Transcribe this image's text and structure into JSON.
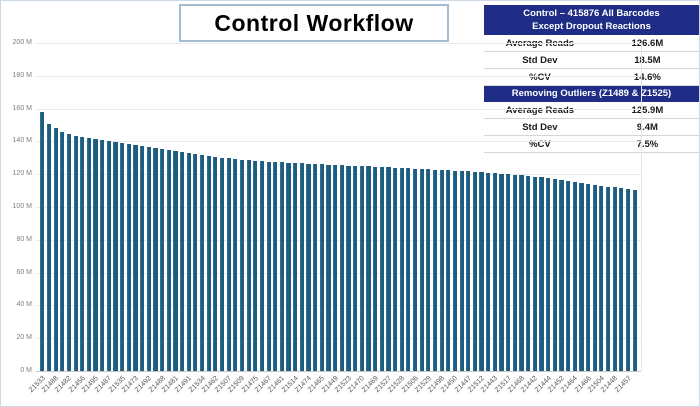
{
  "title": "Control Workflow",
  "stats_panel": {
    "sections": [
      {
        "header_line1": "Control  – 415876 All Barcodes",
        "header_line2": "Except Dropout Reactions",
        "rows": [
          {
            "label": "Average Reads",
            "value": "126.6M"
          },
          {
            "label": "Std Dev",
            "value": "18.5M"
          },
          {
            "label": "%CV",
            "value": "14.6%"
          }
        ]
      },
      {
        "header_line1": "Removing Outliers (Z1489 & Z1525)",
        "rows": [
          {
            "label": "Average Reads",
            "value": "125.9M"
          },
          {
            "label": "Std Dev",
            "value": "9.4M"
          },
          {
            "label": "%CV",
            "value": "7.5%"
          }
        ]
      }
    ]
  },
  "chart_data": {
    "type": "bar",
    "title": "Control Workflow",
    "xlabel": "",
    "ylabel": "",
    "ylim": [
      0,
      200
    ],
    "ytick_step": 20,
    "ytick_labels": [
      "0 M",
      "20 M",
      "40 M",
      "60 M",
      "80 M",
      "100 M",
      "120 M",
      "140 M",
      "160 M",
      "180 M",
      "200 M"
    ],
    "grid": true,
    "legend": "none",
    "bar_color": "#1e5c80",
    "units": "M",
    "label_every_n_bars": 2,
    "categories": [
      "Z1533",
      "Z1488",
      "Z1482",
      "Z1456",
      "Z1495",
      "Z1487",
      "Z1535",
      "Z1473",
      "Z1492",
      "Z1488",
      "Z1481",
      "Z1491",
      "Z1534",
      "Z1462",
      "Z1507",
      "Z1509",
      "Z1475",
      "Z1467",
      "Z1461",
      "Z1514",
      "Z1474",
      "Z1465",
      "Z1449",
      "Z1523",
      "Z1470",
      "Z1469",
      "Z1527",
      "Z1528",
      "Z1506",
      "Z1529",
      "Z1498",
      "Z1450",
      "Z1447",
      "Z1512",
      "Z1443",
      "Z1517",
      "Z1468",
      "Z1442",
      "Z1444",
      "Z1452",
      "Z1464",
      "Z1466",
      "Z1504",
      "Z1448",
      "Z1457"
    ],
    "values": [
      158.0,
      150.5,
      148.0,
      146.0,
      144.5,
      143.5,
      142.8,
      142.0,
      141.4,
      140.8,
      140.2,
      139.6,
      139.0,
      138.4,
      137.8,
      137.2,
      136.6,
      136.0,
      135.4,
      134.8,
      134.2,
      133.6,
      133.0,
      132.4,
      131.8,
      131.2,
      130.6,
      130.1,
      129.6,
      129.2,
      128.8,
      128.5,
      128.2,
      127.9,
      127.7,
      127.5,
      127.3,
      127.1,
      126.9,
      126.7,
      126.5,
      126.3,
      126.1,
      125.9,
      125.7,
      125.5,
      125.3,
      125.1,
      124.9,
      124.7,
      124.5,
      124.3,
      124.1,
      123.9,
      123.7,
      123.5,
      123.3,
      123.1,
      122.9,
      122.7,
      122.5,
      122.3,
      122.1,
      121.9,
      121.7,
      121.5,
      121.2,
      120.9,
      120.6,
      120.3,
      120.0,
      119.7,
      119.3,
      118.9,
      118.5,
      118.1,
      117.6,
      117.1,
      116.6,
      116.1,
      115.5,
      114.9,
      114.3,
      113.7,
      113.1,
      112.5,
      111.9,
      111.4,
      111.0,
      110.5
    ]
  }
}
